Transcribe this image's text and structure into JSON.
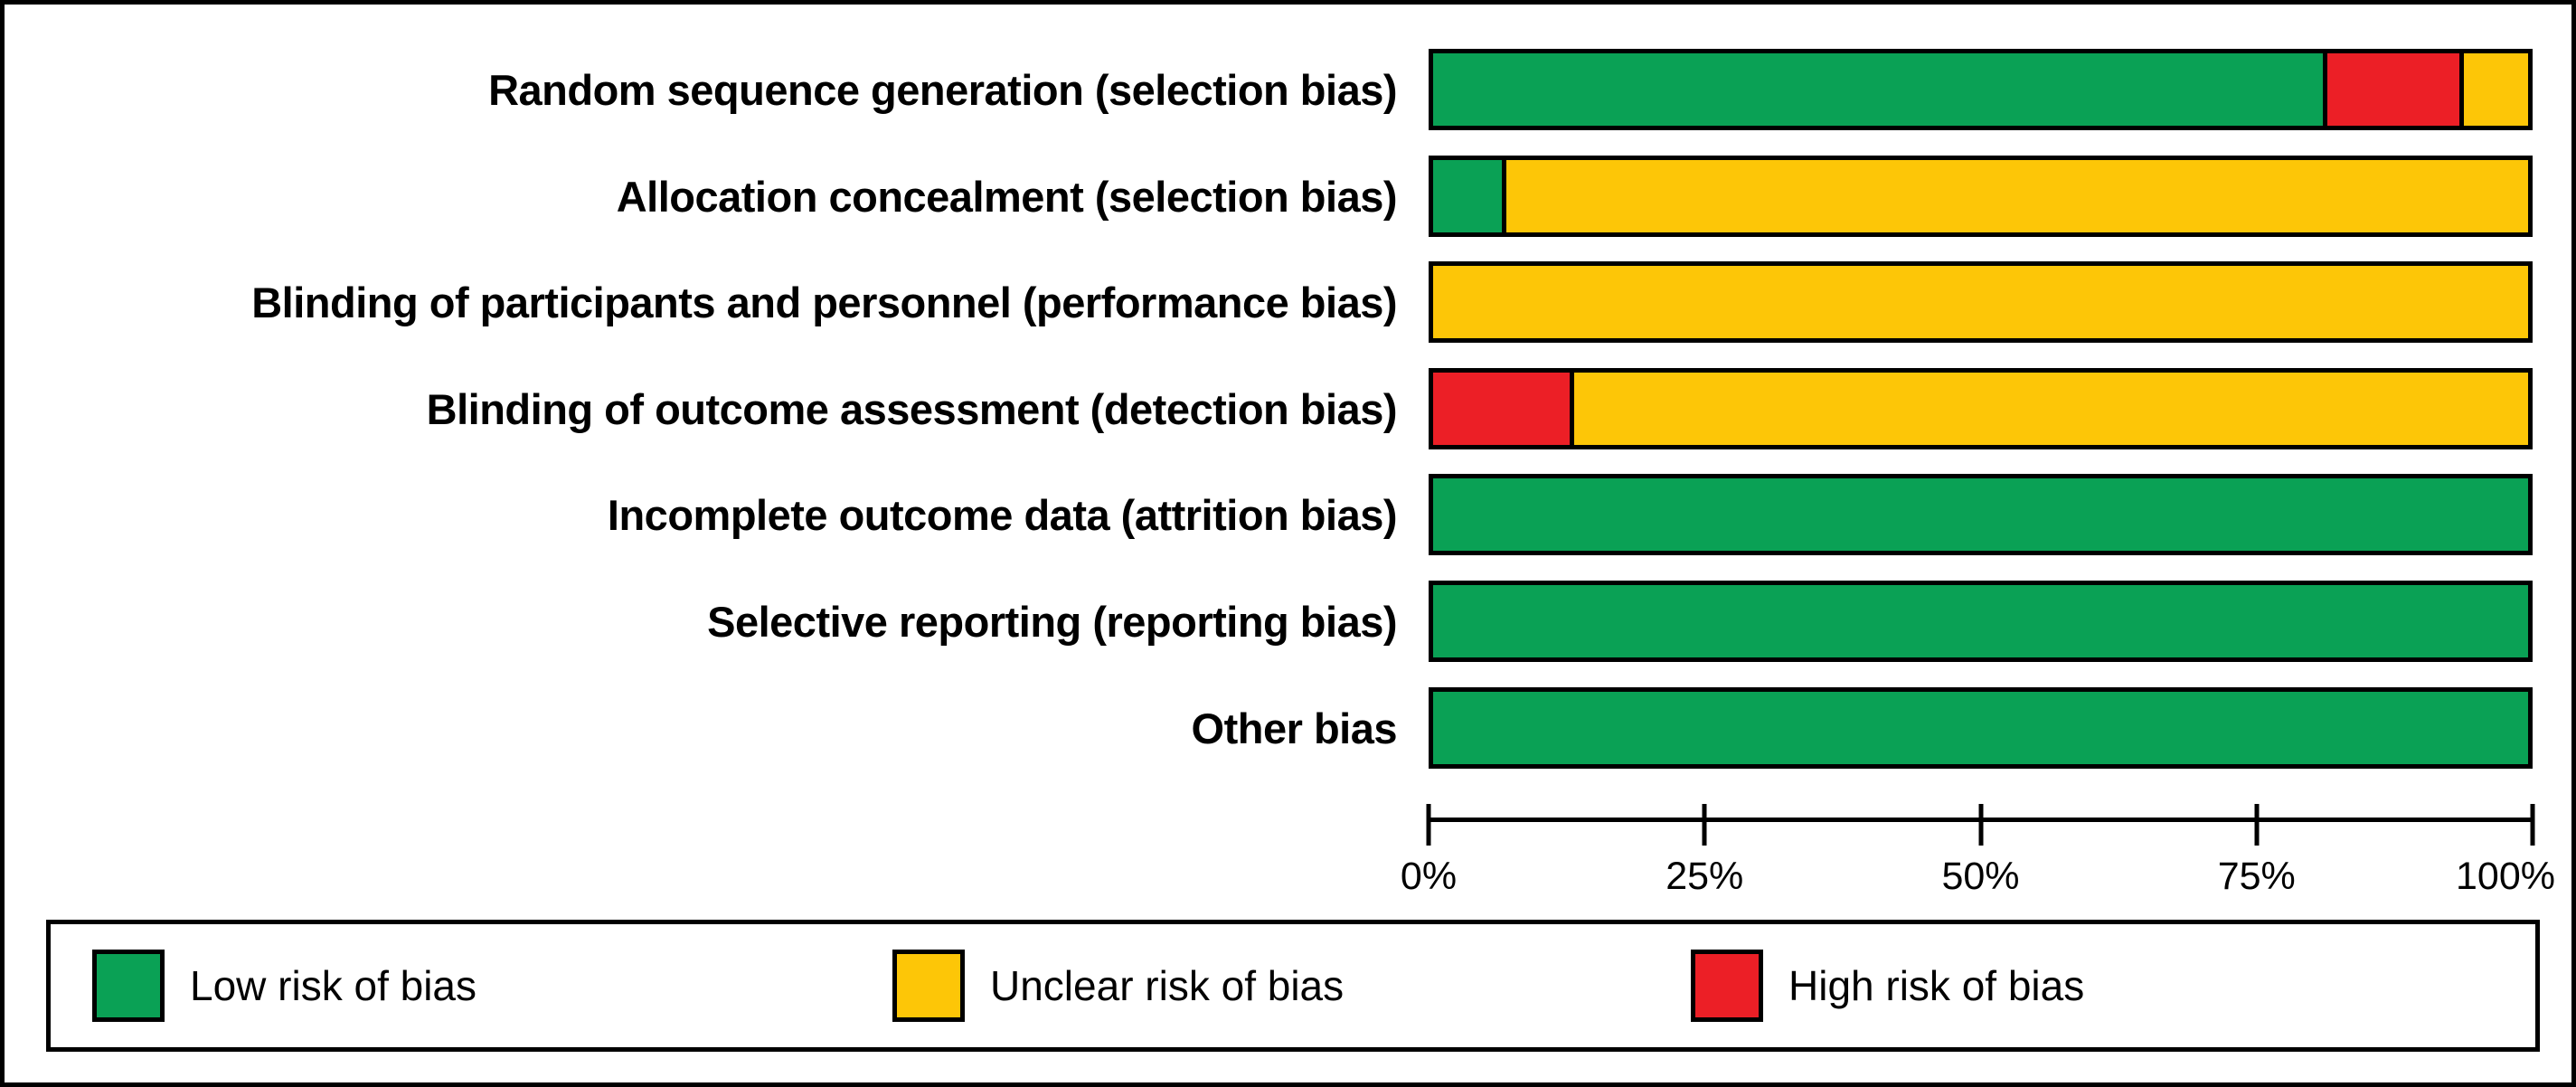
{
  "colors": {
    "low_risk": "#0AA155",
    "unclear_risk": "#FDC607",
    "high_risk": "#EC1F26",
    "outline": "#000000",
    "background": "#FFFFFF"
  },
  "chart_data": {
    "type": "bar",
    "variant": "horizontal_stacked_100_percent",
    "title": "",
    "xlabel": "",
    "ylabel": "",
    "grid": false,
    "categories": [
      "Random sequence generation (selection bias)",
      "Allocation concealment (selection bias)",
      "Blinding of participants and personnel (performance bias)",
      "Blinding of outcome assessment (detection bias)",
      "Incomplete outcome data (attrition bias)",
      "Selective reporting (reporting bias)",
      "Other bias"
    ],
    "series": [
      {
        "key": "low_risk",
        "name": "Low risk of bias",
        "color": "#0AA155",
        "values": [
          81.25,
          6.25,
          0,
          0,
          100,
          100,
          100
        ]
      },
      {
        "key": "high_risk",
        "name": "High risk of bias",
        "color": "#EC1F26",
        "values": [
          12.5,
          0,
          0,
          12.5,
          0,
          0,
          0
        ]
      },
      {
        "key": "unclear_risk",
        "name": "Unclear risk of bias",
        "color": "#FDC607",
        "values": [
          6.25,
          93.75,
          100,
          87.5,
          0,
          0,
          0
        ]
      }
    ],
    "x_axis": {
      "range": [
        0,
        100
      ],
      "tick_positions": [
        0,
        25,
        50,
        75,
        100
      ],
      "tick_labels": [
        "0%",
        "25%",
        "50%",
        "75%",
        "100%"
      ]
    },
    "legend": {
      "position": "bottom",
      "items": [
        {
          "label": "Low risk of bias",
          "color": "#0AA155",
          "key": "low_risk"
        },
        {
          "label": "Unclear risk of bias",
          "color": "#FDC607",
          "key": "unclear_risk"
        },
        {
          "label": "High risk of bias",
          "color": "#EC1F26",
          "key": "high_risk"
        }
      ]
    }
  }
}
